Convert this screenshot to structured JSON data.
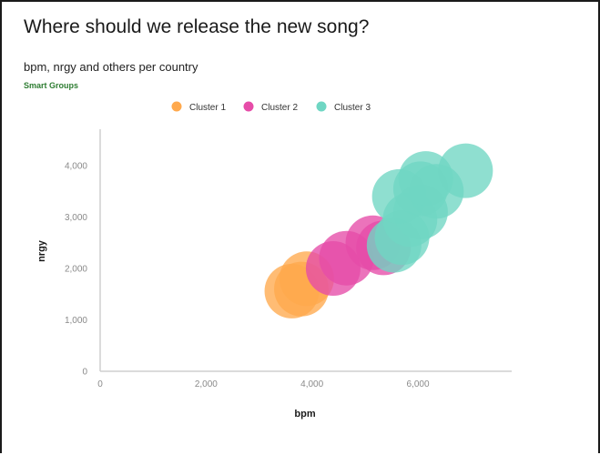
{
  "page": {
    "title": "Where should we release the new song?",
    "subtitle": "bpm, nrgy and others per country",
    "smart_groups_label": "Smart Groups",
    "smart_groups_color": "#2e7d32"
  },
  "chart_data": {
    "type": "scatter",
    "variant": "bubble",
    "title": "bpm, nrgy and others per country",
    "xlabel": "bpm",
    "ylabel": "nrgy",
    "xlim": [
      0,
      7800
    ],
    "ylim": [
      0,
      4500
    ],
    "x_ticks": [
      0,
      2000,
      4000,
      6000
    ],
    "x_tick_labels": [
      "0",
      "2,000",
      "4,000",
      "6,000"
    ],
    "y_ticks": [
      0,
      1000,
      2000,
      3000,
      4000
    ],
    "y_tick_labels": [
      "0",
      "1,000",
      "2,000",
      "3,000",
      "4,000"
    ],
    "grid": false,
    "legend_position": "top-center",
    "series": [
      {
        "name": "Cluster 1",
        "color": "#ffa94d",
        "points": [
          {
            "x": 3620,
            "y": 1560
          },
          {
            "x": 3800,
            "y": 1600
          },
          {
            "x": 3900,
            "y": 1800
          }
        ]
      },
      {
        "name": "Cluster 2",
        "color": "#e64ca8",
        "points": [
          {
            "x": 4400,
            "y": 2000
          },
          {
            "x": 4650,
            "y": 2200
          },
          {
            "x": 5150,
            "y": 2500
          },
          {
            "x": 5350,
            "y": 2400
          }
        ]
      },
      {
        "name": "Cluster 3",
        "color": "#6fd6c3",
        "points": [
          {
            "x": 5550,
            "y": 2450
          },
          {
            "x": 5700,
            "y": 2600
          },
          {
            "x": 5850,
            "y": 2950
          },
          {
            "x": 6050,
            "y": 3100
          },
          {
            "x": 5650,
            "y": 3400
          },
          {
            "x": 6050,
            "y": 3550
          },
          {
            "x": 6350,
            "y": 3500
          },
          {
            "x": 6150,
            "y": 3750
          },
          {
            "x": 6900,
            "y": 3900
          }
        ]
      }
    ]
  }
}
